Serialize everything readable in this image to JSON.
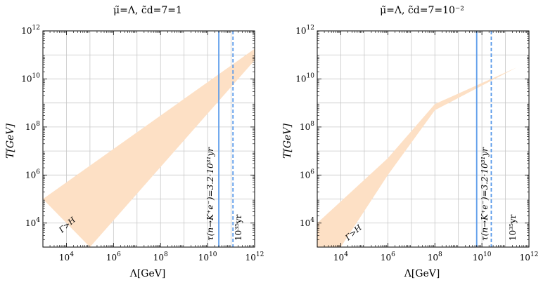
{
  "chart_data": [
    {
      "type": "area",
      "title": "μ̃=Λ, c̃d=7=1",
      "xlabel": "Λ[GeV]",
      "ylabel": "T[GeV]",
      "xscale": "log",
      "yscale": "log",
      "xlim": [
        1000,
        1000000000000
      ],
      "ylim": [
        1000,
        1000000000000
      ],
      "grid": true,
      "x_ticks": [
        {
          "v": 10000,
          "m": "4"
        },
        {
          "v": 1000000,
          "m": "6"
        },
        {
          "v": 100000000,
          "m": "8"
        },
        {
          "v": 10000000000,
          "m": "10"
        },
        {
          "v": 1000000000000,
          "m": "12"
        }
      ],
      "y_ticks": [
        {
          "v": 10000,
          "m": "4"
        },
        {
          "v": 1000000,
          "m": "6"
        },
        {
          "v": 100000000,
          "m": "8"
        },
        {
          "v": 10000000000,
          "m": "10"
        },
        {
          "v": 1000000000000,
          "m": "12"
        }
      ],
      "tick_base": "10",
      "series": [
        {
          "color": "#fde0c5",
          "upper": [
            [
              1000,
              100000
            ],
            [
              1000000000000,
              180000000000
            ]
          ],
          "lower": [
            [
              100000,
              1000
            ],
            [
              1000000000000,
              60000000000
            ]
          ]
        }
      ],
      "vlines": [
        {
          "x": 30000000000,
          "style": "solid",
          "color": "#5b9bea",
          "label": "τ(n→K⁺e⁻)=3.2·10³¹yr"
        },
        {
          "x": 120000000000,
          "style": "dashed",
          "color": "#5b9bea",
          "label": "10³⁵yr"
        }
      ],
      "region_label": "Γ>H"
    },
    {
      "type": "area",
      "title": "μ̃=Λ, c̃d=7=10⁻²",
      "xlabel": "Λ[GeV]",
      "ylabel": "T[GeV]",
      "xscale": "log",
      "yscale": "log",
      "xlim": [
        1000,
        1000000000000
      ],
      "ylim": [
        1000,
        1000000000000
      ],
      "grid": true,
      "x_ticks": [
        {
          "v": 10000,
          "m": "4"
        },
        {
          "v": 1000000,
          "m": "6"
        },
        {
          "v": 100000000,
          "m": "8"
        },
        {
          "v": 10000000000,
          "m": "10"
        },
        {
          "v": 1000000000000,
          "m": "12"
        }
      ],
      "y_ticks": [
        {
          "v": 10000,
          "m": "4"
        },
        {
          "v": 1000000,
          "m": "6"
        },
        {
          "v": 100000000,
          "m": "8"
        },
        {
          "v": 10000000000,
          "m": "10"
        },
        {
          "v": 1000000000000,
          "m": "12"
        }
      ],
      "tick_base": "10",
      "series": [
        {
          "color": "#fde0c5",
          "upper": [
            [
              1000,
              10000
            ],
            [
              1000000,
              5000000
            ],
            [
              100000000,
              900000000
            ],
            [
              300000000000,
              30000000000
            ]
          ],
          "lower": [
            [
              1000,
              1000
            ],
            [
              10000,
              1000
            ],
            [
              1000000,
              1000000
            ],
            [
              100000000,
              500000000
            ],
            [
              300000000000,
              30000000000
            ]
          ]
        }
      ],
      "vlines": [
        {
          "x": 6000000000,
          "style": "solid",
          "color": "#5b9bea",
          "label": "τ(n→K⁺e⁻)=3.2·10³¹yr"
        },
        {
          "x": 25000000000,
          "style": "dashed",
          "color": "#5b9bea",
          "label": "10³⁵yr"
        }
      ],
      "region_label": "Γ>H"
    }
  ]
}
